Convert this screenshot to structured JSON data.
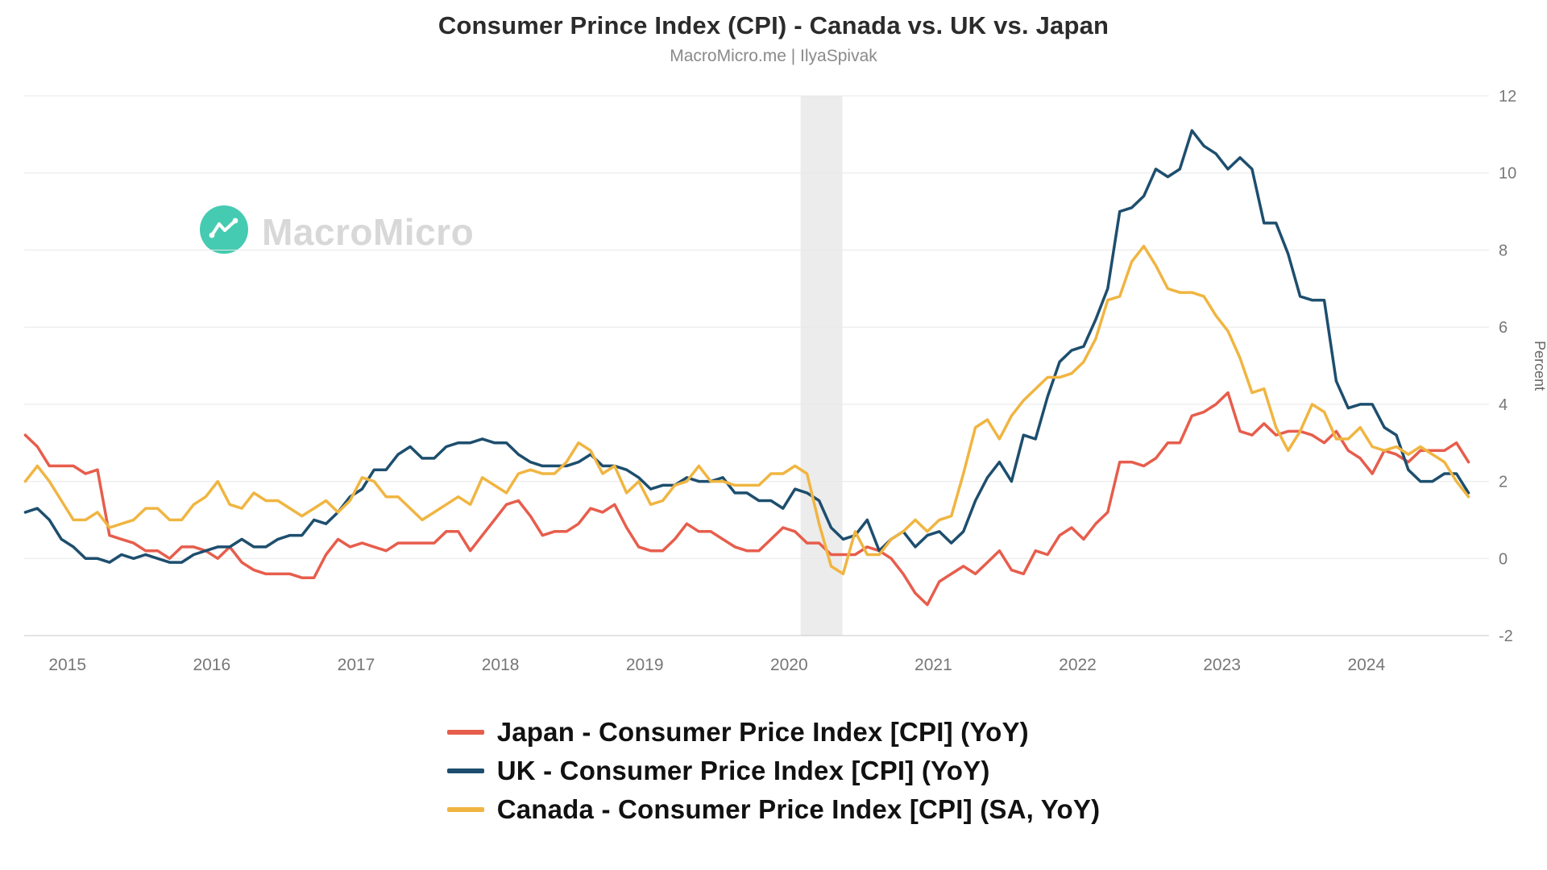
{
  "header": {
    "title": "Consumer Prince Index (CPI) - Canada vs. UK vs. Japan",
    "subtitle": "MacroMicro.me | IlyaSpivak"
  },
  "watermark": {
    "text": "MacroMicro",
    "logo_color": "#45cbb1",
    "text_color": "#d8d8d8"
  },
  "chart_data": {
    "type": "line",
    "title": "Consumer Prince Index (CPI) - Canada vs. UK vs. Japan",
    "xlabel": "",
    "ylabel": "Percent",
    "ylim": [
      -2,
      12
    ],
    "yticks": [
      12,
      10,
      8,
      6,
      4,
      2,
      0,
      -2
    ],
    "xticks": [
      2015,
      2016,
      2017,
      2018,
      2019,
      2020,
      2021,
      2022,
      2023,
      2024
    ],
    "xlim": [
      2014.7,
      2024.85
    ],
    "x_start": 2014.708,
    "x_step_years": 0.0833333,
    "grid": "horizontal",
    "grid_color": "#e8e8e8",
    "axis_color": "#c9c9c9",
    "legend_position": "bottom",
    "recession_band": {
      "x_start": 2020.08,
      "x_end": 2020.37,
      "color": "#ececec"
    },
    "series": [
      {
        "key": "japan",
        "name": "Japan - Consumer Price Index [CPI] (YoY)",
        "color": "#e75d4c",
        "values": [
          3.2,
          2.9,
          2.4,
          2.4,
          2.4,
          2.2,
          2.3,
          0.6,
          0.5,
          0.4,
          0.2,
          0.2,
          0.0,
          0.3,
          0.3,
          0.2,
          0.0,
          0.3,
          -0.1,
          -0.3,
          -0.4,
          -0.4,
          -0.4,
          -0.5,
          -0.5,
          0.1,
          0.5,
          0.3,
          0.4,
          0.3,
          0.2,
          0.4,
          0.4,
          0.4,
          0.4,
          0.7,
          0.7,
          0.2,
          0.6,
          1.0,
          1.4,
          1.5,
          1.1,
          0.6,
          0.7,
          0.7,
          0.9,
          1.3,
          1.2,
          1.4,
          0.8,
          0.3,
          0.2,
          0.2,
          0.5,
          0.9,
          0.7,
          0.7,
          0.5,
          0.3,
          0.2,
          0.2,
          0.5,
          0.8,
          0.7,
          0.4,
          0.4,
          0.1,
          0.1,
          0.1,
          0.3,
          0.2,
          0.0,
          -0.4,
          -0.9,
          -1.2,
          -0.6,
          -0.4,
          -0.2,
          -0.4,
          -0.1,
          0.2,
          -0.3,
          -0.4,
          0.2,
          0.1,
          0.6,
          0.8,
          0.5,
          0.9,
          1.2,
          2.5,
          2.5,
          2.4,
          2.6,
          3.0,
          3.0,
          3.7,
          3.8,
          4.0,
          4.3,
          3.3,
          3.2,
          3.5,
          3.2,
          3.3,
          3.3,
          3.2,
          3.0,
          3.3,
          2.8,
          2.6,
          2.2,
          2.8,
          2.7,
          2.5,
          2.8,
          2.8,
          2.8,
          3.0,
          2.5
        ]
      },
      {
        "key": "uk",
        "name": "UK - Consumer Price Index [CPI] (YoY)",
        "color": "#1d4e6e",
        "values": [
          1.2,
          1.3,
          1.0,
          0.5,
          0.3,
          0.0,
          0.0,
          -0.1,
          0.1,
          0.0,
          0.1,
          0.0,
          -0.1,
          -0.1,
          0.1,
          0.2,
          0.3,
          0.3,
          0.5,
          0.3,
          0.3,
          0.5,
          0.6,
          0.6,
          1.0,
          0.9,
          1.2,
          1.6,
          1.8,
          2.3,
          2.3,
          2.7,
          2.9,
          2.6,
          2.6,
          2.9,
          3.0,
          3.0,
          3.1,
          3.0,
          3.0,
          2.7,
          2.5,
          2.4,
          2.4,
          2.4,
          2.5,
          2.7,
          2.4,
          2.4,
          2.3,
          2.1,
          1.8,
          1.9,
          1.9,
          2.1,
          2.0,
          2.0,
          2.1,
          1.7,
          1.7,
          1.5,
          1.5,
          1.3,
          1.8,
          1.7,
          1.5,
          0.8,
          0.5,
          0.6,
          1.0,
          0.2,
          0.5,
          0.7,
          0.3,
          0.6,
          0.7,
          0.4,
          0.7,
          1.5,
          2.1,
          2.5,
          2.0,
          3.2,
          3.1,
          4.2,
          5.1,
          5.4,
          5.5,
          6.2,
          7.0,
          9.0,
          9.1,
          9.4,
          10.1,
          9.9,
          10.1,
          11.1,
          10.7,
          10.5,
          10.1,
          10.4,
          10.1,
          8.7,
          8.7,
          7.9,
          6.8,
          6.7,
          6.7,
          4.6,
          3.9,
          4.0,
          4.0,
          3.4,
          3.2,
          2.3,
          2.0,
          2.0,
          2.2,
          2.2,
          1.7
        ]
      },
      {
        "key": "canada",
        "name": "Canada - Consumer Price Index [CPI] (SA, YoY)",
        "color": "#f0b541",
        "values": [
          2.0,
          2.4,
          2.0,
          1.5,
          1.0,
          1.0,
          1.2,
          0.8,
          0.9,
          1.0,
          1.3,
          1.3,
          1.0,
          1.0,
          1.4,
          1.6,
          2.0,
          1.4,
          1.3,
          1.7,
          1.5,
          1.5,
          1.3,
          1.1,
          1.3,
          1.5,
          1.2,
          1.5,
          2.1,
          2.0,
          1.6,
          1.6,
          1.3,
          1.0,
          1.2,
          1.4,
          1.6,
          1.4,
          2.1,
          1.9,
          1.7,
          2.2,
          2.3,
          2.2,
          2.2,
          2.5,
          3.0,
          2.8,
          2.2,
          2.4,
          1.7,
          2.0,
          1.4,
          1.5,
          1.9,
          2.0,
          2.4,
          2.0,
          2.0,
          1.9,
          1.9,
          1.9,
          2.2,
          2.2,
          2.4,
          2.2,
          0.9,
          -0.2,
          -0.4,
          0.7,
          0.1,
          0.1,
          0.5,
          0.7,
          1.0,
          0.7,
          1.0,
          1.1,
          2.2,
          3.4,
          3.6,
          3.1,
          3.7,
          4.1,
          4.4,
          4.7,
          4.7,
          4.8,
          5.1,
          5.7,
          6.7,
          6.8,
          7.7,
          8.1,
          7.6,
          7.0,
          6.9,
          6.9,
          6.8,
          6.3,
          5.9,
          5.2,
          4.3,
          4.4,
          3.4,
          2.8,
          3.3,
          4.0,
          3.8,
          3.1,
          3.1,
          3.4,
          2.9,
          2.8,
          2.9,
          2.7,
          2.9,
          2.7,
          2.5,
          2.0,
          1.6
        ]
      }
    ]
  },
  "legend": {
    "items": [
      {
        "label": "Japan - Consumer Price Index [CPI] (YoY)",
        "color": "#e75d4c"
      },
      {
        "label": "UK - Consumer Price Index [CPI] (YoY)",
        "color": "#1d4e6e"
      },
      {
        "label": "Canada - Consumer Price Index [CPI] (SA, YoY)",
        "color": "#f0b541"
      }
    ]
  }
}
